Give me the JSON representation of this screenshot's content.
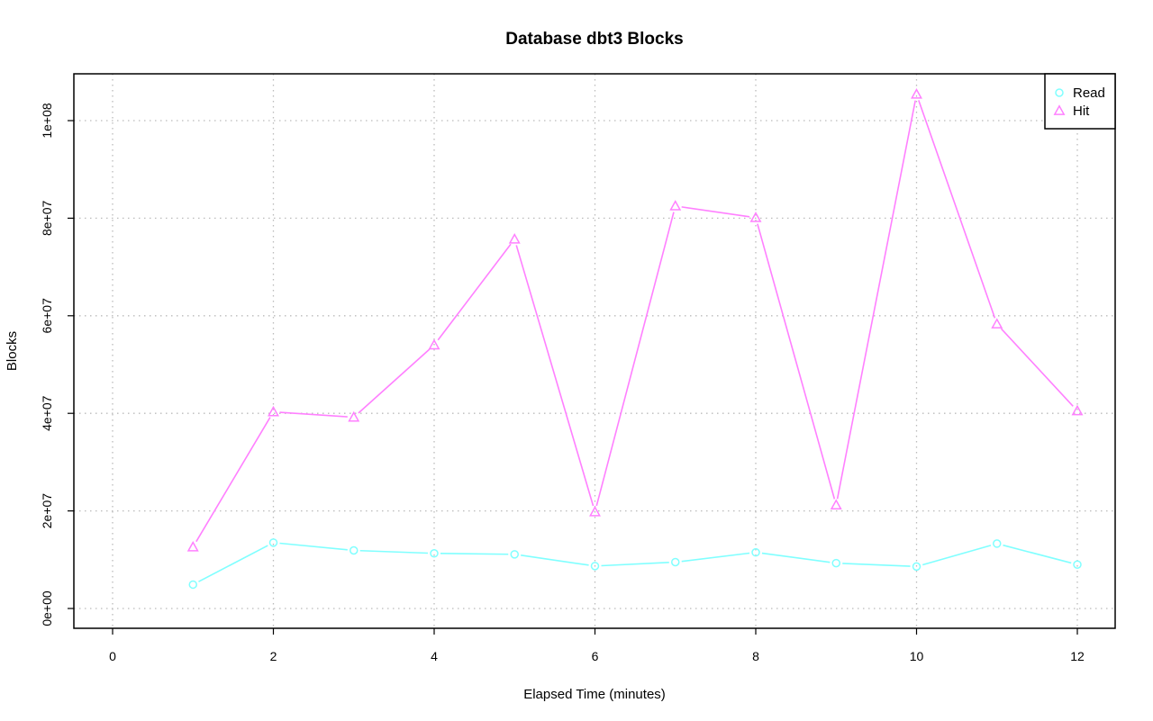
{
  "chart_data": {
    "type": "line",
    "title": "Database dbt3 Blocks",
    "xlabel": "Elapsed Time (minutes)",
    "ylabel": "Blocks",
    "xlim": [
      0,
      12
    ],
    "ylim": [
      0,
      105000000
    ],
    "x_ticks": [
      0,
      2,
      4,
      6,
      8,
      10,
      12
    ],
    "x_tick_labels": [
      "0",
      "2",
      "4",
      "6",
      "8",
      "10",
      "12"
    ],
    "y_ticks": [
      0,
      20000000,
      40000000,
      60000000,
      80000000,
      100000000
    ],
    "y_tick_labels": [
      "0e+00",
      "2e+07",
      "4e+07",
      "6e+07",
      "8e+07",
      "1e+08"
    ],
    "grid": true,
    "legend_position": "top-right",
    "x": [
      1,
      2,
      3,
      4,
      5,
      6,
      7,
      8,
      9,
      10,
      11,
      12
    ],
    "series": [
      {
        "name": "Read",
        "color": "#80ffff",
        "marker": "circle",
        "values": [
          4900000,
          13500000,
          11900000,
          11300000,
          11100000,
          8700000,
          9500000,
          11500000,
          9300000,
          8600000,
          13300000,
          9000000
        ]
      },
      {
        "name": "Hit",
        "color": "#ff80ff",
        "marker": "triangle",
        "values": [
          12600000,
          40300000,
          39200000,
          54000000,
          75700000,
          19800000,
          82500000,
          80100000,
          21200000,
          105400000,
          58300000,
          40500000
        ]
      }
    ]
  }
}
